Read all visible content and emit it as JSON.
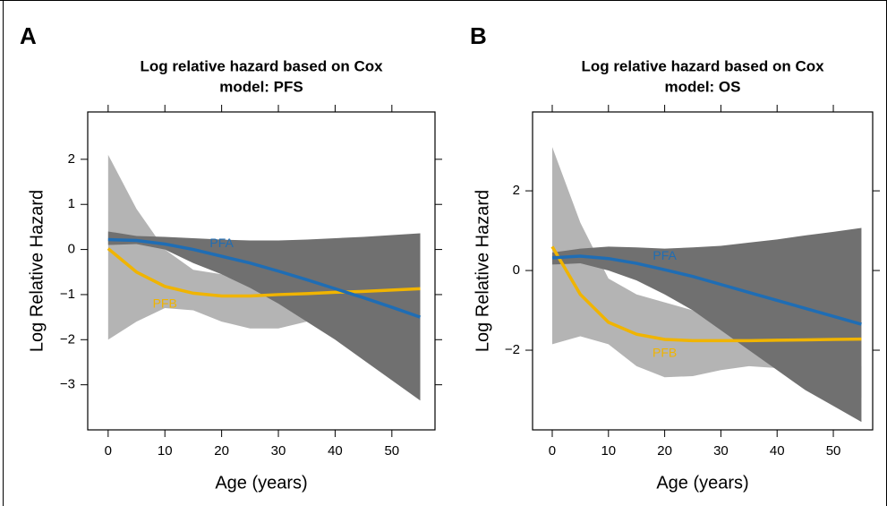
{
  "chart_data": [
    {
      "type": "line",
      "panel_label": "A",
      "title": [
        "Log relative hazard based on Cox",
        "model: PFS"
      ],
      "x_label": "Age (years)",
      "y_label": "Log Relative Hazard",
      "x": [
        0,
        5,
        10,
        15,
        20,
        25,
        30,
        35,
        40,
        45,
        50,
        55
      ],
      "xlim": [
        -3.6,
        57.6
      ],
      "xticks": [
        0,
        10,
        20,
        30,
        40,
        50
      ],
      "ylim": [
        -4,
        3.05
      ],
      "yticks": [
        {
          "value": -3,
          "label": "−3"
        },
        {
          "value": -2,
          "label": "−2"
        },
        {
          "value": -1,
          "label": "−1"
        },
        0,
        1,
        2
      ],
      "series": [
        {
          "name": "PFB",
          "color": "#f0b400",
          "band_color": "#b4b4b4",
          "values": [
            0.02,
            -0.5,
            -0.82,
            -0.97,
            -1.03,
            -1.03,
            -1.0,
            -0.98,
            -0.95,
            -0.93,
            -0.9,
            -0.87
          ],
          "upper": [
            2.1,
            0.9,
            0.0,
            -0.45,
            -0.55,
            -0.6,
            -0.6,
            -0.65,
            -0.7,
            -0.7,
            -0.7,
            -0.65
          ],
          "lower": [
            -2.0,
            -1.6,
            -1.3,
            -1.35,
            -1.6,
            -1.75,
            -1.75,
            -1.6,
            -1.4,
            -1.3,
            -1.2,
            -1.1
          ]
        },
        {
          "name": "PFA",
          "color": "#1f6db4",
          "band_color": "#707070",
          "values": [
            0.22,
            0.2,
            0.12,
            0.0,
            -0.15,
            -0.3,
            -0.48,
            -0.67,
            -0.87,
            -1.07,
            -1.28,
            -1.5
          ],
          "upper": [
            0.4,
            0.3,
            0.28,
            0.25,
            0.22,
            0.2,
            0.2,
            0.22,
            0.25,
            0.28,
            0.32,
            0.36
          ],
          "lower": [
            0.1,
            0.12,
            0.0,
            -0.3,
            -0.55,
            -0.85,
            -1.2,
            -1.6,
            -2.0,
            -2.45,
            -2.9,
            -3.35
          ]
        }
      ]
    },
    {
      "type": "line",
      "panel_label": "B",
      "title": [
        "Log relative hazard based on Cox",
        "model: OS"
      ],
      "x_label": "Age (years)",
      "y_label": "Log Relative Hazard",
      "x": [
        0,
        5,
        10,
        15,
        20,
        25,
        30,
        35,
        40,
        45,
        50,
        55
      ],
      "xlim": [
        -3.5,
        57.0
      ],
      "xticks": [
        0,
        10,
        20,
        30,
        40,
        50
      ],
      "ylim": [
        -4,
        3.98
      ],
      "yticks": [
        {
          "value": -2,
          "label": "−2"
        },
        0,
        2
      ],
      "series": [
        {
          "name": "PFB",
          "color": "#f0b400",
          "band_color": "#b4b4b4",
          "values": [
            0.6,
            -0.6,
            -1.3,
            -1.6,
            -1.73,
            -1.76,
            -1.76,
            -1.76,
            -1.75,
            -1.74,
            -1.73,
            -1.72
          ],
          "upper": [
            3.1,
            1.2,
            -0.2,
            -0.6,
            -0.8,
            -1.0,
            -1.3,
            -1.6,
            -1.9,
            -2.2,
            -2.3,
            -2.4
          ],
          "lower": [
            -1.85,
            -1.65,
            -1.85,
            -2.4,
            -2.68,
            -2.65,
            -2.5,
            -2.4,
            -2.45,
            -2.6,
            -2.9,
            -3.2
          ]
        },
        {
          "name": "PFA",
          "color": "#1f6db4",
          "band_color": "#707070",
          "values": [
            0.32,
            0.36,
            0.3,
            0.18,
            0.02,
            -0.15,
            -0.35,
            -0.55,
            -0.75,
            -0.95,
            -1.15,
            -1.35
          ],
          "upper": [
            0.45,
            0.55,
            0.6,
            0.58,
            0.55,
            0.58,
            0.62,
            0.7,
            0.78,
            0.88,
            0.97,
            1.07
          ],
          "lower": [
            0.15,
            0.18,
            0.0,
            -0.25,
            -0.6,
            -1.0,
            -1.5,
            -2.0,
            -2.5,
            -3.0,
            -3.4,
            -3.8
          ]
        }
      ]
    }
  ]
}
